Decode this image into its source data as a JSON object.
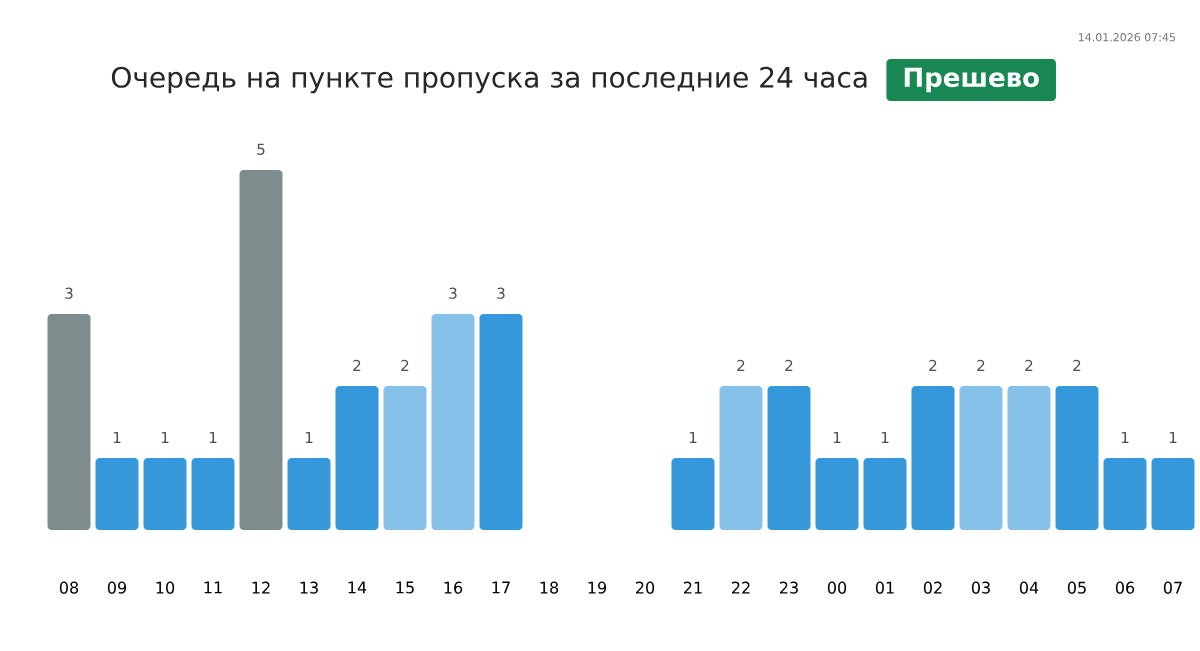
{
  "chart_data": {
    "type": "bar",
    "title": "Очередь на пункте пропуска за последние 24 часа",
    "subtitle": "Прешево",
    "annotations": [
      "14.01.2026 07:45"
    ],
    "categories": [
      "08",
      "09",
      "10",
      "11",
      "12",
      "13",
      "14",
      "15",
      "16",
      "17",
      "18",
      "19",
      "20",
      "21",
      "22",
      "23",
      "00",
      "01",
      "02",
      "03",
      "04",
      "05",
      "06",
      "07"
    ],
    "values": [
      3,
      1,
      1,
      1,
      5,
      1,
      2,
      2,
      3,
      3,
      null,
      null,
      null,
      1,
      2,
      2,
      1,
      1,
      2,
      2,
      2,
      2,
      1,
      1
    ],
    "colors": [
      "#7f8c8d",
      "#3498db",
      "#3498db",
      "#3498db",
      "#7f8c8d",
      "#3498db",
      "#3498db",
      "#85c1e9",
      "#85c1e9",
      "#3498db",
      "#3498db",
      "#3498db",
      "#3498db",
      "#3498db",
      "#85c1e9",
      "#3498db",
      "#3498db",
      "#3498db",
      "#3498db",
      "#85c1e9",
      "#85c1e9",
      "#3498db",
      "#3498db",
      "#3498db"
    ],
    "ylim": [
      0,
      5
    ],
    "data_labels": true
  }
}
